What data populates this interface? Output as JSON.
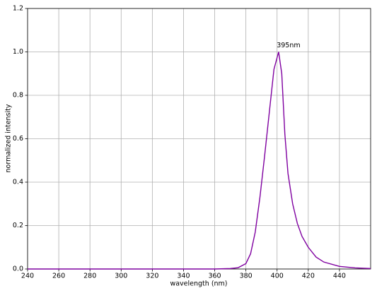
{
  "chart_data": {
    "type": "line",
    "xlabel": "wavelength (nm)",
    "ylabel": "normalized intensity",
    "annotation": "395nm",
    "color": "#7f00a0",
    "x": [
      240,
      300,
      360,
      370,
      375,
      380,
      383,
      386,
      389,
      392,
      395,
      398,
      401,
      403,
      405,
      407,
      410,
      413,
      416,
      420,
      425,
      430,
      440,
      450,
      460
    ],
    "values": [
      0,
      0,
      0,
      0.002,
      0.006,
      0.025,
      0.07,
      0.17,
      0.33,
      0.52,
      0.72,
      0.92,
      1.0,
      0.9,
      0.62,
      0.44,
      0.3,
      0.21,
      0.15,
      0.1,
      0.055,
      0.032,
      0.012,
      0.005,
      0.002
    ],
    "xlim": [
      240,
      460
    ],
    "ylim": [
      0,
      1.2
    ],
    "xticks": [
      240,
      260,
      280,
      300,
      320,
      340,
      360,
      380,
      400,
      420,
      440
    ],
    "yticks": [
      {
        "value": 0,
        "label": "0.0"
      },
      {
        "value": 0.2,
        "label": "0.2"
      },
      {
        "value": 0.4,
        "label": "0.4"
      },
      {
        "value": 0.6,
        "label": "0.6"
      },
      {
        "value": 0.8,
        "label": "0.8"
      },
      {
        "value": 1.0,
        "label": "1.0"
      },
      {
        "value": 1.2,
        "label": "1.2"
      }
    ],
    "grid": true
  }
}
